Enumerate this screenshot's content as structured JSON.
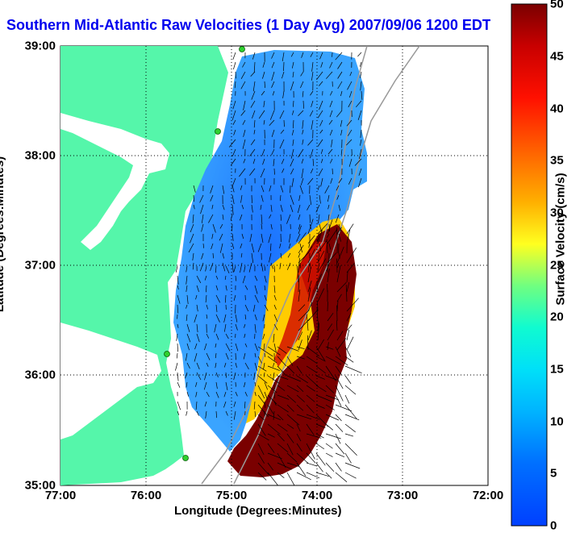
{
  "title": "Southern Mid-Atlantic Raw Velocities (1 Day Avg) 2007/09/06 1200 EDT",
  "xlabel": "Longitude (Degrees:Minutes)",
  "ylabel": "Latitude (Degrees:Minutes)",
  "colorbar_label": "Surface Velocity (cm/s)",
  "x_ticks": [
    "77:00",
    "76:00",
    "75:00",
    "74:00",
    "73:00",
    "72:00"
  ],
  "y_ticks": [
    "39:00",
    "38:00",
    "37:00",
    "36:00",
    "35:00"
  ],
  "colorbar_ticks": [
    "50",
    "45",
    "40",
    "35",
    "30",
    "25",
    "20",
    "15",
    "10",
    "5",
    "0"
  ],
  "colors": {
    "land": "#55f6aa",
    "title": "#0000ee",
    "velocity_low": "#2a7dff",
    "velocity_high": "#7a0000"
  },
  "chart_data": {
    "type": "heatmap",
    "variable": "Surface Velocity",
    "units": "cm/s",
    "xlim": [
      "77:00",
      "72:00"
    ],
    "ylim": [
      "35:00",
      "39:00"
    ],
    "color_range": [
      0,
      50
    ],
    "regions": [
      {
        "area": "north shelf near 38-39N",
        "level_cm_s": 5
      },
      {
        "area": "central shelf near 37-38N",
        "level_cm_s": 8
      },
      {
        "area": "shelf break near 37N 74W",
        "level_cm_s": 45
      },
      {
        "area": "Gulf Stream south of 36.5N",
        "level_cm_s": 50
      }
    ]
  }
}
